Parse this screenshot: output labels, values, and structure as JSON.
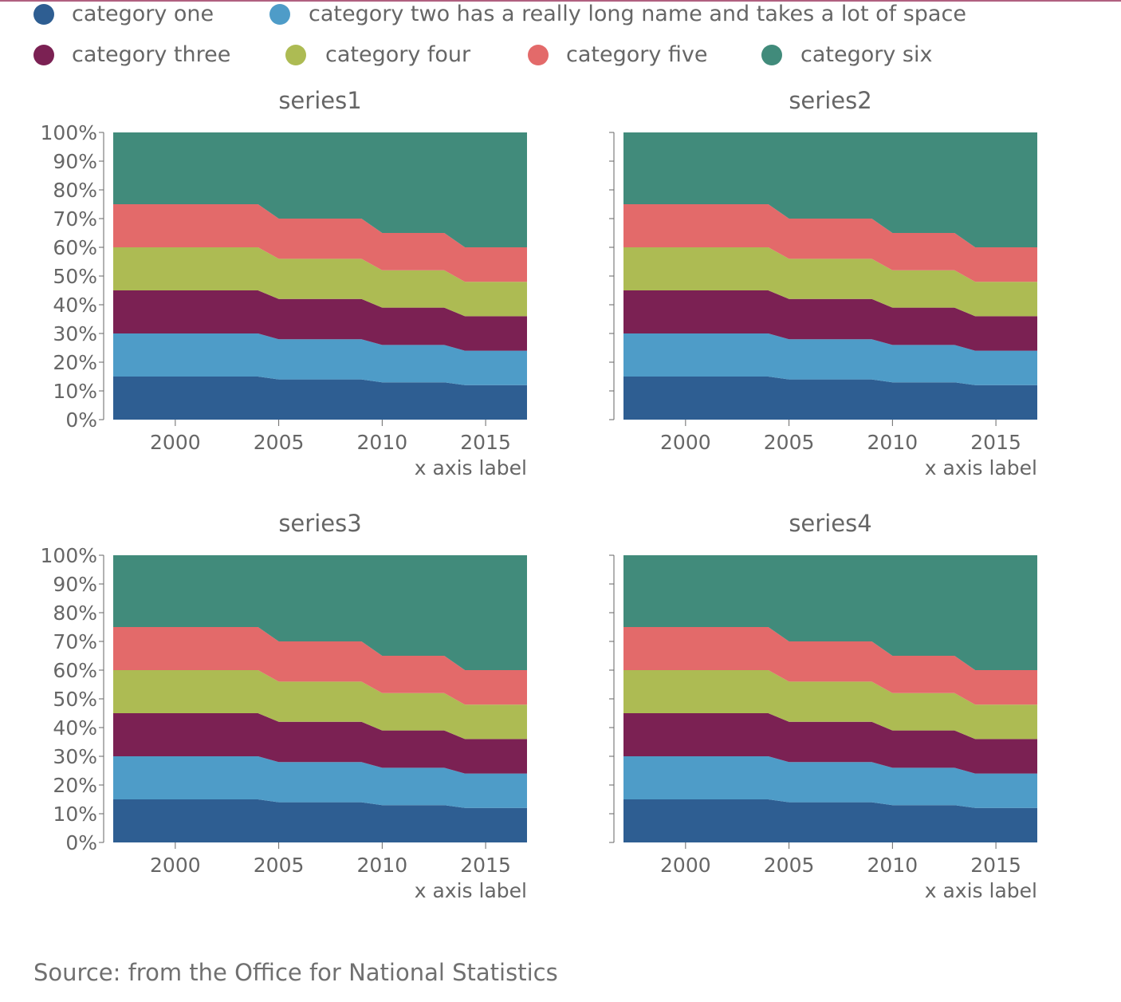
{
  "colors": {
    "top_rule": "#b06080",
    "text": "#666666",
    "axis": "#666666"
  },
  "legend": [
    {
      "label": "category one",
      "color": "#2e5e92"
    },
    {
      "label": "category two has a really long name and takes a lot of space",
      "color": "#4e9cc8"
    },
    {
      "label": "category three",
      "color": "#7b2153"
    },
    {
      "label": "category four",
      "color": "#adbb53"
    },
    {
      "label": "category five",
      "color": "#e36a6a"
    },
    {
      "label": "category six",
      "color": "#418b7b"
    }
  ],
  "source": "Source: from the Office for National Statistics",
  "chart_data": [
    {
      "type": "area",
      "stacked": "percent",
      "title": "series1",
      "xlabel": "x axis label",
      "ylabel": "",
      "xlim": [
        1997,
        2017
      ],
      "ylim": [
        0,
        100
      ],
      "x_ticks": [
        2000,
        2005,
        2010,
        2015
      ],
      "y_ticks": [
        "0%",
        "10%",
        "20%",
        "30%",
        "40%",
        "50%",
        "60%",
        "70%",
        "80%",
        "90%",
        "100%"
      ],
      "x": [
        1997,
        2004,
        2005,
        2009,
        2010,
        2013,
        2014,
        2017
      ],
      "series": [
        {
          "name": "category one",
          "values": [
            15,
            15,
            14,
            14,
            13,
            13,
            12,
            12
          ]
        },
        {
          "name": "category two has a really long name and takes a lot of space",
          "values": [
            15,
            15,
            14,
            14,
            13,
            13,
            12,
            12
          ]
        },
        {
          "name": "category three",
          "values": [
            15,
            15,
            14,
            14,
            13,
            13,
            12,
            12
          ]
        },
        {
          "name": "category four",
          "values": [
            15,
            15,
            14,
            14,
            13,
            13,
            12,
            12
          ]
        },
        {
          "name": "category five",
          "values": [
            15,
            15,
            14,
            14,
            13,
            13,
            12,
            12
          ]
        },
        {
          "name": "category six",
          "values": [
            25,
            25,
            30,
            30,
            35,
            35,
            40,
            40
          ]
        }
      ]
    },
    {
      "type": "area",
      "stacked": "percent",
      "title": "series2",
      "xlabel": "x axis label",
      "ylabel": "",
      "xlim": [
        1997,
        2017
      ],
      "ylim": [
        0,
        100
      ],
      "x_ticks": [
        2000,
        2005,
        2010,
        2015
      ],
      "y_ticks": [
        "0%",
        "10%",
        "20%",
        "30%",
        "40%",
        "50%",
        "60%",
        "70%",
        "80%",
        "90%",
        "100%"
      ],
      "x": [
        1997,
        2004,
        2005,
        2009,
        2010,
        2013,
        2014,
        2017
      ],
      "series": [
        {
          "name": "category one",
          "values": [
            15,
            15,
            14,
            14,
            13,
            13,
            12,
            12
          ]
        },
        {
          "name": "category two has a really long name and takes a lot of space",
          "values": [
            15,
            15,
            14,
            14,
            13,
            13,
            12,
            12
          ]
        },
        {
          "name": "category three",
          "values": [
            15,
            15,
            14,
            14,
            13,
            13,
            12,
            12
          ]
        },
        {
          "name": "category four",
          "values": [
            15,
            15,
            14,
            14,
            13,
            13,
            12,
            12
          ]
        },
        {
          "name": "category five",
          "values": [
            15,
            15,
            14,
            14,
            13,
            13,
            12,
            12
          ]
        },
        {
          "name": "category six",
          "values": [
            25,
            25,
            30,
            30,
            35,
            35,
            40,
            40
          ]
        }
      ]
    },
    {
      "type": "area",
      "stacked": "percent",
      "title": "series3",
      "xlabel": "x axis label",
      "ylabel": "",
      "xlim": [
        1997,
        2017
      ],
      "ylim": [
        0,
        100
      ],
      "x_ticks": [
        2000,
        2005,
        2010,
        2015
      ],
      "y_ticks": [
        "0%",
        "10%",
        "20%",
        "30%",
        "40%",
        "50%",
        "60%",
        "70%",
        "80%",
        "90%",
        "100%"
      ],
      "x": [
        1997,
        2004,
        2005,
        2009,
        2010,
        2013,
        2014,
        2017
      ],
      "series": [
        {
          "name": "category one",
          "values": [
            15,
            15,
            14,
            14,
            13,
            13,
            12,
            12
          ]
        },
        {
          "name": "category two has a really long name and takes a lot of space",
          "values": [
            15,
            15,
            14,
            14,
            13,
            13,
            12,
            12
          ]
        },
        {
          "name": "category three",
          "values": [
            15,
            15,
            14,
            14,
            13,
            13,
            12,
            12
          ]
        },
        {
          "name": "category four",
          "values": [
            15,
            15,
            14,
            14,
            13,
            13,
            12,
            12
          ]
        },
        {
          "name": "category five",
          "values": [
            15,
            15,
            14,
            14,
            13,
            13,
            12,
            12
          ]
        },
        {
          "name": "category six",
          "values": [
            25,
            25,
            30,
            30,
            35,
            35,
            40,
            40
          ]
        }
      ]
    },
    {
      "type": "area",
      "stacked": "percent",
      "title": "series4",
      "xlabel": "x axis label",
      "ylabel": "",
      "xlim": [
        1997,
        2017
      ],
      "ylim": [
        0,
        100
      ],
      "x_ticks": [
        2000,
        2005,
        2010,
        2015
      ],
      "y_ticks": [
        "0%",
        "10%",
        "20%",
        "30%",
        "40%",
        "50%",
        "60%",
        "70%",
        "80%",
        "90%",
        "100%"
      ],
      "x": [
        1997,
        2004,
        2005,
        2009,
        2010,
        2013,
        2014,
        2017
      ],
      "series": [
        {
          "name": "category one",
          "values": [
            15,
            15,
            14,
            14,
            13,
            13,
            12,
            12
          ]
        },
        {
          "name": "category two has a really long name and takes a lot of space",
          "values": [
            15,
            15,
            14,
            14,
            13,
            13,
            12,
            12
          ]
        },
        {
          "name": "category three",
          "values": [
            15,
            15,
            14,
            14,
            13,
            13,
            12,
            12
          ]
        },
        {
          "name": "category four",
          "values": [
            15,
            15,
            14,
            14,
            13,
            13,
            12,
            12
          ]
        },
        {
          "name": "category five",
          "values": [
            15,
            15,
            14,
            14,
            13,
            13,
            12,
            12
          ]
        },
        {
          "name": "category six",
          "values": [
            25,
            25,
            30,
            30,
            35,
            35,
            40,
            40
          ]
        }
      ]
    }
  ]
}
